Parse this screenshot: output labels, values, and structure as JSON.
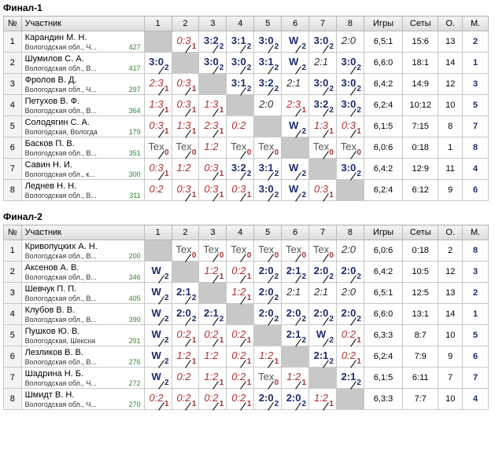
{
  "tables": [
    {
      "title": "Финал-1",
      "headers": {
        "num": "№",
        "player": "Участник",
        "cols": [
          "1",
          "2",
          "3",
          "4",
          "5",
          "6",
          "7",
          "8"
        ],
        "games": "Игры",
        "sets": "Сеты",
        "points": "О.",
        "place": "М."
      },
      "rows": [
        {
          "num": "1",
          "name": "Карандин М. Н.",
          "region": "Вологодская обл., Ч...",
          "rating": "427",
          "cells": [
            null,
            {
              "s": "0:3",
              "p": "1",
              "t": "lose"
            },
            {
              "s": "3:2",
              "p": "2",
              "t": "win"
            },
            {
              "s": "3:1",
              "p": "2",
              "t": "win"
            },
            {
              "s": "3:0",
              "p": "2",
              "t": "win"
            },
            {
              "s": "W",
              "p": "2",
              "t": "win"
            },
            {
              "s": "3:0",
              "p": "2",
              "t": "win"
            },
            {
              "s": "2:0",
              "p": "",
              "t": "tie"
            }
          ],
          "games": "6,5:1",
          "sets": "15:6",
          "points": "13",
          "place": "2"
        },
        {
          "num": "2",
          "name": "Шумилов С. А.",
          "region": "Вологодская обл., В...",
          "rating": "417",
          "cells": [
            {
              "s": "3:0",
              "p": "2",
              "t": "win"
            },
            null,
            {
              "s": "3:0",
              "p": "2",
              "t": "win"
            },
            {
              "s": "3:0",
              "p": "2",
              "t": "win"
            },
            {
              "s": "3:1",
              "p": "2",
              "t": "win"
            },
            {
              "s": "W",
              "p": "2",
              "t": "win"
            },
            {
              "s": "2:1",
              "p": "",
              "t": "tie"
            },
            {
              "s": "3:0",
              "p": "2",
              "t": "win"
            }
          ],
          "games": "6,6:0",
          "sets": "18:1",
          "points": "14",
          "place": "1"
        },
        {
          "num": "3",
          "name": "Фролов В. Д.",
          "region": "Вологодская обл., Ч...",
          "rating": "297",
          "cells": [
            {
              "s": "2:3",
              "p": "1",
              "t": "lose"
            },
            {
              "s": "0:3",
              "p": "1",
              "t": "lose"
            },
            null,
            {
              "s": "3:1",
              "p": "2",
              "t": "win"
            },
            {
              "s": "3:2",
              "p": "2",
              "t": "win"
            },
            {
              "s": "2:1",
              "p": "",
              "t": "tie"
            },
            {
              "s": "3:0",
              "p": "2",
              "t": "win"
            },
            {
              "s": "3:0",
              "p": "2",
              "t": "win"
            }
          ],
          "games": "6,4:2",
          "sets": "14:9",
          "points": "12",
          "place": "3"
        },
        {
          "num": "4",
          "name": "Петухов В. Ф.",
          "region": "Вологодская обл., В...",
          "rating": "364",
          "cells": [
            {
              "s": "1:3",
              "p": "1",
              "t": "lose"
            },
            {
              "s": "0:3",
              "p": "1",
              "t": "lose"
            },
            {
              "s": "1:3",
              "p": "1",
              "t": "lose"
            },
            null,
            {
              "s": "2:0",
              "p": "",
              "t": "tie"
            },
            {
              "s": "2:3",
              "p": "1",
              "t": "lose"
            },
            {
              "s": "3:2",
              "p": "2",
              "t": "win"
            },
            {
              "s": "3:0",
              "p": "2",
              "t": "win"
            }
          ],
          "games": "6,2:4",
          "sets": "10:12",
          "points": "10",
          "place": "5"
        },
        {
          "num": "5",
          "name": "Солодягин С. А.",
          "region": "Вологодская, Вологда",
          "rating": "179",
          "cells": [
            {
              "s": "0:3",
              "p": "1",
              "t": "lose"
            },
            {
              "s": "1:3",
              "p": "1",
              "t": "lose"
            },
            {
              "s": "2:3",
              "p": "1",
              "t": "lose"
            },
            {
              "s": "0:2",
              "p": "",
              "t": "lose"
            },
            null,
            {
              "s": "W",
              "p": "2",
              "t": "win"
            },
            {
              "s": "1:3",
              "p": "1",
              "t": "lose"
            },
            {
              "s": "0:3",
              "p": "1",
              "t": "lose"
            }
          ],
          "games": "6,1:5",
          "sets": "7:15",
          "points": "8",
          "place": "7"
        },
        {
          "num": "6",
          "name": "Басков П. В.",
          "region": "Вологодская обл., В...",
          "rating": "351",
          "cells": [
            {
              "s": "Tex",
              "p": "0",
              "t": "tech"
            },
            {
              "s": "Tex",
              "p": "0",
              "t": "tech"
            },
            {
              "s": "1:2",
              "p": "",
              "t": "lose"
            },
            {
              "s": "Tex",
              "p": "0",
              "t": "tech"
            },
            {
              "s": "Tex",
              "p": "0",
              "t": "tech"
            },
            null,
            {
              "s": "Tex",
              "p": "0",
              "t": "tech"
            },
            {
              "s": "Tex",
              "p": "0",
              "t": "tech"
            }
          ],
          "games": "6,0:6",
          "sets": "0:18",
          "points": "1",
          "place": "8"
        },
        {
          "num": "7",
          "name": "Савин Н. И.",
          "region": "Вологодская обл., к...",
          "rating": "300",
          "cells": [
            {
              "s": "0:3",
              "p": "1",
              "t": "lose"
            },
            {
              "s": "1:2",
              "p": "",
              "t": "lose"
            },
            {
              "s": "0:3",
              "p": "1",
              "t": "lose"
            },
            {
              "s": "3:2",
              "p": "2",
              "t": "win"
            },
            {
              "s": "3:1",
              "p": "2",
              "t": "win"
            },
            {
              "s": "W",
              "p": "2",
              "t": "win"
            },
            null,
            {
              "s": "3:0",
              "p": "2",
              "t": "win"
            }
          ],
          "games": "6,4:2",
          "sets": "12:9",
          "points": "11",
          "place": "4"
        },
        {
          "num": "8",
          "name": "Леднев Н. Н.",
          "region": "Вологодская обл., В...",
          "rating": "311",
          "cells": [
            {
              "s": "0:2",
              "p": "",
              "t": "lose"
            },
            {
              "s": "0:3",
              "p": "1",
              "t": "lose"
            },
            {
              "s": "0:3",
              "p": "1",
              "t": "lose"
            },
            {
              "s": "0:3",
              "p": "1",
              "t": "lose"
            },
            {
              "s": "3:0",
              "p": "2",
              "t": "win"
            },
            {
              "s": "W",
              "p": "2",
              "t": "win"
            },
            {
              "s": "0:3",
              "p": "1",
              "t": "lose"
            },
            null
          ],
          "games": "6,2:4",
          "sets": "6:12",
          "points": "9",
          "place": "6"
        }
      ]
    },
    {
      "title": "Финал-2",
      "headers": {
        "num": "№",
        "player": "Участник",
        "cols": [
          "1",
          "2",
          "3",
          "4",
          "5",
          "6",
          "7",
          "8"
        ],
        "games": "Игры",
        "sets": "Сеты",
        "points": "О.",
        "place": "М."
      },
      "rows": [
        {
          "num": "1",
          "name": "Кривопуцких А. Н.",
          "region": "Вологодская обл., В...",
          "rating": "200",
          "cells": [
            null,
            {
              "s": "Tex",
              "p": "0",
              "t": "tech"
            },
            {
              "s": "Tex",
              "p": "0",
              "t": "tech"
            },
            {
              "s": "Tex",
              "p": "0",
              "t": "tech"
            },
            {
              "s": "Tex",
              "p": "0",
              "t": "tech"
            },
            {
              "s": "Tex",
              "p": "0",
              "t": "tech"
            },
            {
              "s": "Tex",
              "p": "0",
              "t": "tech"
            },
            {
              "s": "2:0",
              "p": "",
              "t": "tie"
            }
          ],
          "games": "6,0:6",
          "sets": "0:18",
          "points": "2",
          "place": "8"
        },
        {
          "num": "2",
          "name": "Аксенов А. В.",
          "region": "Вологодская обл., В...",
          "rating": "346",
          "cells": [
            {
              "s": "W",
              "p": "2",
              "t": "win"
            },
            null,
            {
              "s": "1:2",
              "p": "1",
              "t": "lose"
            },
            {
              "s": "0:2",
              "p": "1",
              "t": "lose"
            },
            {
              "s": "2:0",
              "p": "2",
              "t": "win"
            },
            {
              "s": "2:1",
              "p": "2",
              "t": "win"
            },
            {
              "s": "2:0",
              "p": "2",
              "t": "win"
            },
            {
              "s": "2:0",
              "p": "2",
              "t": "win"
            }
          ],
          "games": "6,4:2",
          "sets": "10:5",
          "points": "12",
          "place": "3"
        },
        {
          "num": "3",
          "name": "Шевчук П. П.",
          "region": "Вологодская обл., В...",
          "rating": "405",
          "cells": [
            {
              "s": "W",
              "p": "2",
              "t": "win"
            },
            {
              "s": "2:1",
              "p": "2",
              "t": "win"
            },
            null,
            {
              "s": "1:2",
              "p": "1",
              "t": "lose"
            },
            {
              "s": "2:0",
              "p": "2",
              "t": "win"
            },
            {
              "s": "2:1",
              "p": "",
              "t": "tie"
            },
            {
              "s": "2:1",
              "p": "",
              "t": "tie"
            },
            {
              "s": "2:0",
              "p": "",
              "t": "tie"
            }
          ],
          "games": "6,5:1",
          "sets": "12:5",
          "points": "13",
          "place": "2"
        },
        {
          "num": "4",
          "name": "Клубов В. В.",
          "region": "Вологодская обл., В...",
          "rating": "390",
          "cells": [
            {
              "s": "W",
              "p": "2",
              "t": "win"
            },
            {
              "s": "2:0",
              "p": "2",
              "t": "win"
            },
            {
              "s": "2:1",
              "p": "2",
              "t": "win"
            },
            null,
            {
              "s": "2:0",
              "p": "2",
              "t": "win"
            },
            {
              "s": "2:0",
              "p": "2",
              "t": "win"
            },
            {
              "s": "2:0",
              "p": "2",
              "t": "win"
            },
            {
              "s": "2:0",
              "p": "2",
              "t": "win"
            }
          ],
          "games": "6,6:0",
          "sets": "13:1",
          "points": "14",
          "place": "1"
        },
        {
          "num": "5",
          "name": "Пушков Ю. В.",
          "region": "Вологодская, Шексна",
          "rating": "291",
          "cells": [
            {
              "s": "W",
              "p": "2",
              "t": "win"
            },
            {
              "s": "0:2",
              "p": "1",
              "t": "lose"
            },
            {
              "s": "0:2",
              "p": "1",
              "t": "lose"
            },
            {
              "s": "0:2",
              "p": "1",
              "t": "lose"
            },
            null,
            {
              "s": "2:1",
              "p": "2",
              "t": "win"
            },
            {
              "s": "W",
              "p": "2",
              "t": "win"
            },
            {
              "s": "0:2",
              "p": "1",
              "t": "lose"
            }
          ],
          "games": "6,3:3",
          "sets": "8:7",
          "points": "10",
          "place": "5"
        },
        {
          "num": "6",
          "name": "Лезликов В. В.",
          "region": "Вологодская обл., В...",
          "rating": "276",
          "cells": [
            {
              "s": "W",
              "p": "2",
              "t": "win"
            },
            {
              "s": "1:2",
              "p": "1",
              "t": "lose"
            },
            {
              "s": "1:2",
              "p": "",
              "t": "lose"
            },
            {
              "s": "0:2",
              "p": "1",
              "t": "lose"
            },
            {
              "s": "1:2",
              "p": "1",
              "t": "lose"
            },
            null,
            {
              "s": "2:1",
              "p": "2",
              "t": "win"
            },
            {
              "s": "0:2",
              "p": "1",
              "t": "lose"
            }
          ],
          "games": "6,2:4",
          "sets": "7:9",
          "points": "9",
          "place": "6"
        },
        {
          "num": "7",
          "name": "Шадрина Н. Б.",
          "region": "Вологодская обл., Ч...",
          "rating": "272",
          "cells": [
            {
              "s": "W",
              "p": "2",
              "t": "win"
            },
            {
              "s": "0:2",
              "p": "",
              "t": "lose"
            },
            {
              "s": "1:2",
              "p": "1",
              "t": "lose"
            },
            {
              "s": "0:2",
              "p": "1",
              "t": "lose"
            },
            {
              "s": "Tex",
              "p": "0",
              "t": "tech"
            },
            {
              "s": "1:2",
              "p": "1",
              "t": "lose"
            },
            null,
            {
              "s": "2:1",
              "p": "2",
              "t": "win"
            }
          ],
          "games": "6,1:5",
          "sets": "6:11",
          "points": "7",
          "place": "7"
        },
        {
          "num": "8",
          "name": "Шмидт В. Н.",
          "region": "Вологодская обл., Ч...",
          "rating": "270",
          "cells": [
            {
              "s": "0:2",
              "p": "1",
              "t": "lose"
            },
            {
              "s": "0:2",
              "p": "1",
              "t": "lose"
            },
            {
              "s": "0:2",
              "p": "1",
              "t": "lose"
            },
            {
              "s": "0:2",
              "p": "1",
              "t": "lose"
            },
            {
              "s": "2:0",
              "p": "2",
              "t": "win"
            },
            {
              "s": "2:0",
              "p": "2",
              "t": "win"
            },
            {
              "s": "1:2",
              "p": "1",
              "t": "lose"
            },
            null
          ],
          "games": "6,3:3",
          "sets": "7:7",
          "points": "10",
          "place": "4"
        }
      ]
    }
  ]
}
